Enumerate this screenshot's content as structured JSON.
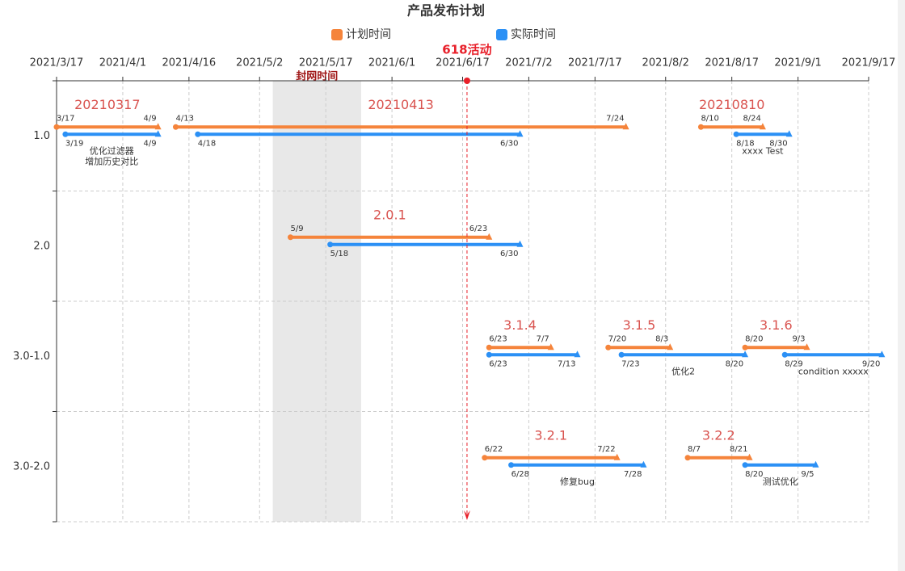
{
  "chart_data": {
    "type": "gantt",
    "title": "产品发布计划",
    "series": [
      {
        "name": "计划时间",
        "color": "#f5843b"
      },
      {
        "name": "实际时间",
        "color": "#2b90f5"
      }
    ],
    "xlim": [
      "2021/3/17",
      "2021/9/17"
    ],
    "xticks": [
      "2021/3/17",
      "2021/4/1",
      "2021/4/16",
      "2021/5/2",
      "2021/5/17",
      "2021/6/1",
      "2021/6/17",
      "2021/7/2",
      "2021/7/17",
      "2021/8/2",
      "2021/8/17",
      "2021/9/1",
      "2021/9/17"
    ],
    "grid": true,
    "rows": [
      {
        "label": "1.0",
        "tasks": [
          {
            "name": "20210317",
            "plan": [
              "3/17",
              "4/9"
            ],
            "actual": [
              "3/19",
              "4/9"
            ],
            "note": [
              "优化过滤器",
              "增加历史对比"
            ]
          },
          {
            "name": "20210413",
            "plan": [
              "4/13",
              "7/24"
            ],
            "actual": [
              "4/18",
              "6/30"
            ]
          },
          {
            "name": "20210810",
            "plan": [
              "8/10",
              "8/24"
            ],
            "actual": [
              "8/18",
              "8/30"
            ],
            "note": [
              "xxxx Test"
            ]
          }
        ]
      },
      {
        "label": "2.0",
        "tasks": [
          {
            "name": "2.0.1",
            "plan": [
              "5/9",
              "6/23"
            ],
            "actual": [
              "5/18",
              "6/30"
            ]
          }
        ]
      },
      {
        "label": "3.0-1.0",
        "tasks": [
          {
            "name": "3.1.4",
            "plan": [
              "6/23",
              "7/7"
            ],
            "actual": [
              "6/23",
              "7/13"
            ]
          },
          {
            "name": "3.1.5",
            "plan": [
              "7/20",
              "8/3"
            ],
            "actual": [
              "7/23",
              "8/20"
            ],
            "note": [
              "优化2"
            ]
          },
          {
            "name": "3.1.6",
            "plan": [
              "8/20",
              "9/3"
            ],
            "actual": [
              "8/29",
              "9/20"
            ],
            "note": [
              "condition xxxxx"
            ]
          }
        ]
      },
      {
        "label": "3.0-2.0",
        "tasks": [
          {
            "name": "3.2.1",
            "plan": [
              "6/22",
              "7/22"
            ],
            "actual": [
              "6/28",
              "7/28"
            ],
            "note": [
              "修复bug"
            ]
          },
          {
            "name": "3.2.2",
            "plan": [
              "8/7",
              "8/21"
            ],
            "actual": [
              "8/20",
              "9/5"
            ],
            "note": [
              "测试优化"
            ]
          }
        ]
      }
    ],
    "markers": [
      {
        "label": "618活动",
        "date": "2021/6/18",
        "color": "#e8202a"
      }
    ],
    "bands": [
      {
        "label": "封网时间",
        "from": "2021/5/5",
        "to": "2021/5/25",
        "color": "#e8e8e8"
      }
    ]
  }
}
